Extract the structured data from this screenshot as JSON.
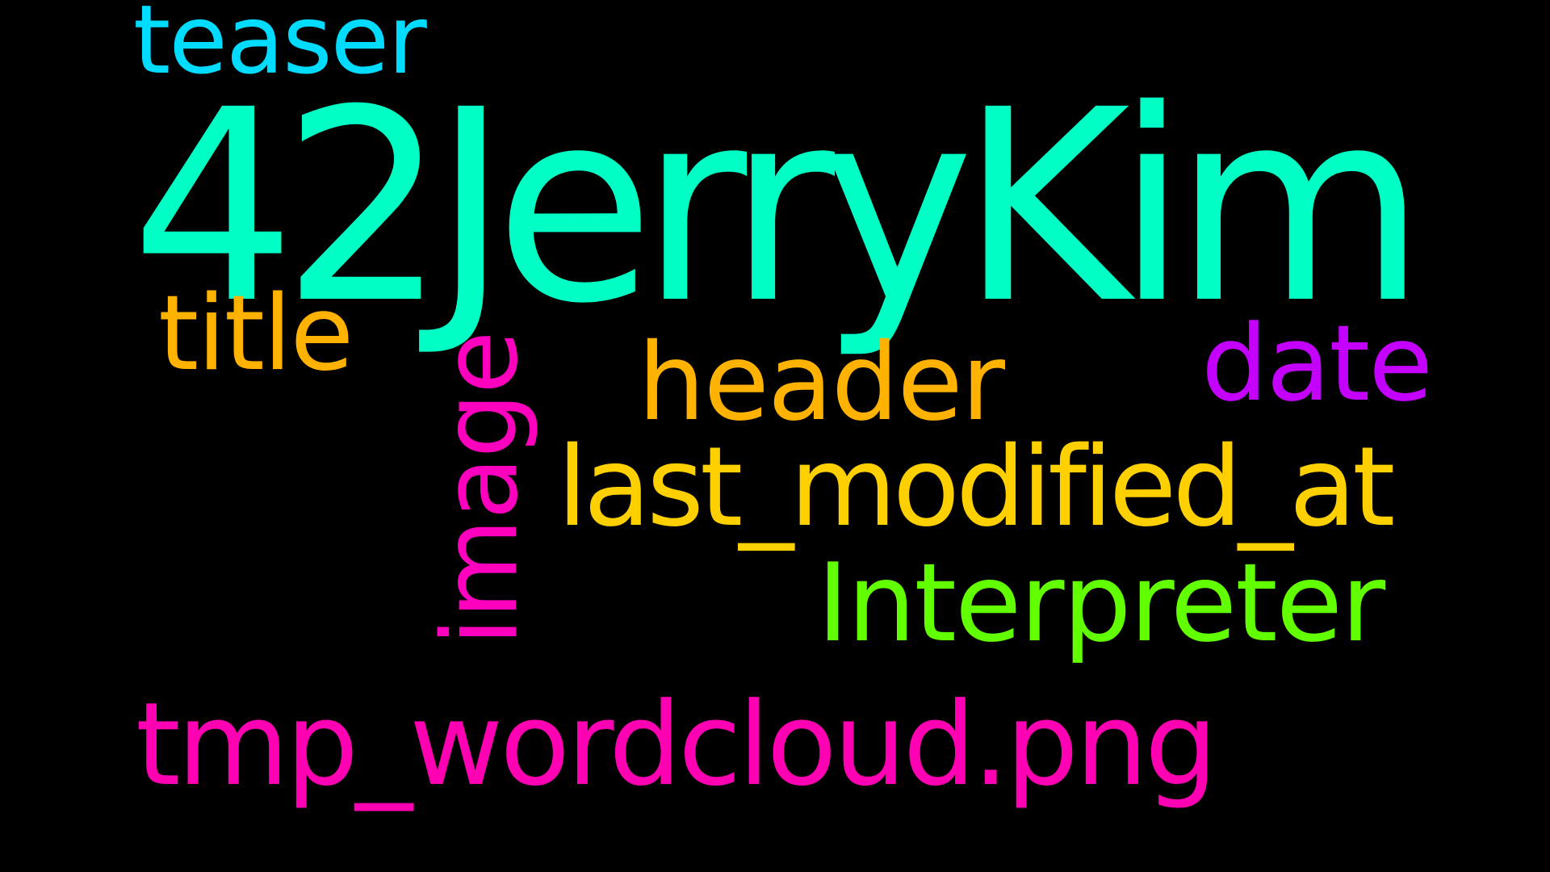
{
  "words": [
    {
      "text": "42JerryKim",
      "color": "#00ffc5"
    },
    {
      "text": "teaser",
      "color": "#00dcff"
    },
    {
      "text": "title",
      "color": "#ffb300"
    },
    {
      "text": "image",
      "color": "#ff00bf"
    },
    {
      "text": "header",
      "color": "#ffb300"
    },
    {
      "text": "date",
      "color": "#c400ff"
    },
    {
      "text": "last_modified_at",
      "color": "#ffd000"
    },
    {
      "text": "Interpreter",
      "color": "#62ff00"
    },
    {
      "text": "tmp_wordcloud.png",
      "color": "#ff00b3"
    }
  ],
  "background": "#000000"
}
